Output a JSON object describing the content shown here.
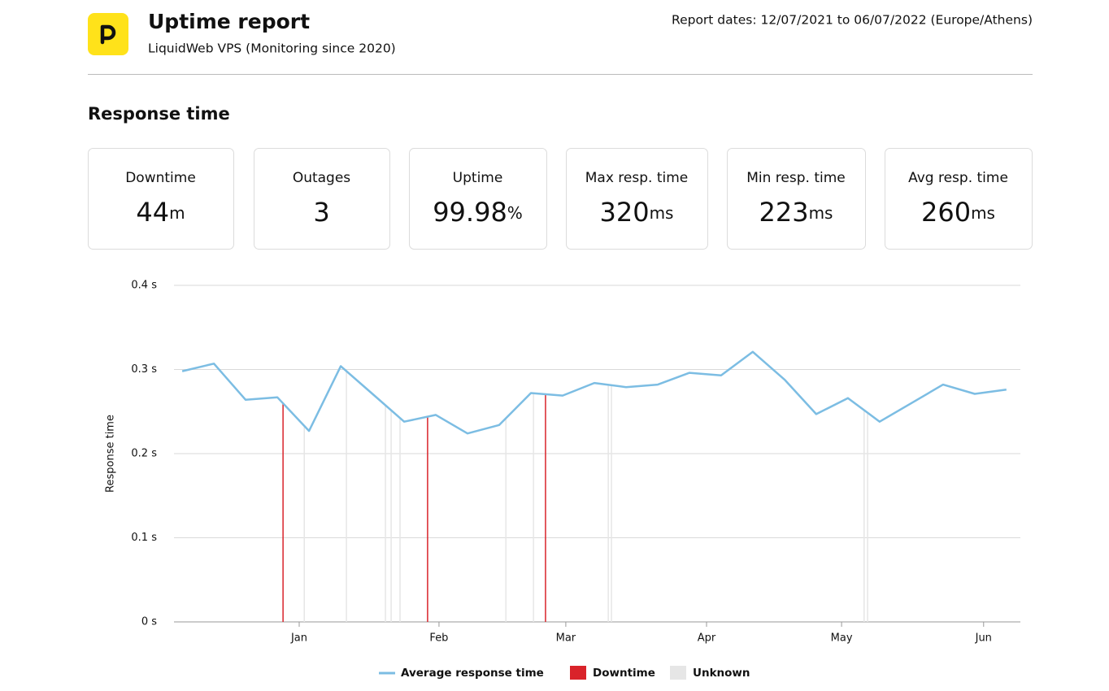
{
  "header": {
    "title": "Uptime report",
    "subtitle": "LiquidWeb VPS (Monitoring since 2020)",
    "report_dates": "Report dates: 12/07/2021 to 06/07/2022 (Europe/Athens)"
  },
  "section_title": "Response time",
  "stats": [
    {
      "label": "Downtime",
      "value": "44",
      "unit": "m"
    },
    {
      "label": "Outages",
      "value": "3"
    },
    {
      "label": "Uptime",
      "value": "99.98",
      "unit": "%"
    },
    {
      "label": "Max resp. time",
      "value": "320",
      "unit": "ms"
    },
    {
      "label": "Min resp. time",
      "value": "223",
      "unit": "ms"
    },
    {
      "label": "Avg resp. time",
      "value": "260",
      "unit": "ms"
    }
  ],
  "chart_data": {
    "type": "line",
    "ylabel": "Response time",
    "ylim": [
      0,
      0.4
    ],
    "yticks": [
      {
        "value": 0,
        "label": "0 s"
      },
      {
        "value": 0.1,
        "label": "0.1 s"
      },
      {
        "value": 0.2,
        "label": "0.2 s"
      },
      {
        "value": 0.3,
        "label": "0.3 s"
      },
      {
        "value": 0.4,
        "label": "0.4 s"
      }
    ],
    "xlim": [
      -0.26,
      26.44
    ],
    "xticks": [
      {
        "value": 3.69,
        "label": "Jan"
      },
      {
        "value": 8.1,
        "label": "Feb"
      },
      {
        "value": 12.1,
        "label": "Mar"
      },
      {
        "value": 16.54,
        "label": "Apr"
      },
      {
        "value": 20.8,
        "label": "May"
      },
      {
        "value": 25.28,
        "label": "Jun"
      }
    ],
    "grid": true,
    "series": [
      {
        "name": "Average response time",
        "color": "#7cbde3",
        "values": [
          0.298,
          0.307,
          0.264,
          0.267,
          0.227,
          0.304,
          0.271,
          0.238,
          0.246,
          0.224,
          0.234,
          0.272,
          0.269,
          0.284,
          0.279,
          0.282,
          0.296,
          0.293,
          0.321,
          0.288,
          0.247,
          0.266,
          0.238,
          0.26,
          0.282,
          0.271,
          0.276
        ]
      }
    ],
    "downtime": {
      "name": "Downtime",
      "color": "#d9232a",
      "x": [
        3.18,
        7.74,
        11.46
      ]
    },
    "unknown": {
      "name": "Unknown",
      "color": "#e6e6e6",
      "x": [
        3.85,
        5.18,
        6.41,
        6.59,
        6.87,
        10.21,
        11.08,
        13.44,
        13.54,
        21.51,
        21.62
      ]
    }
  }
}
